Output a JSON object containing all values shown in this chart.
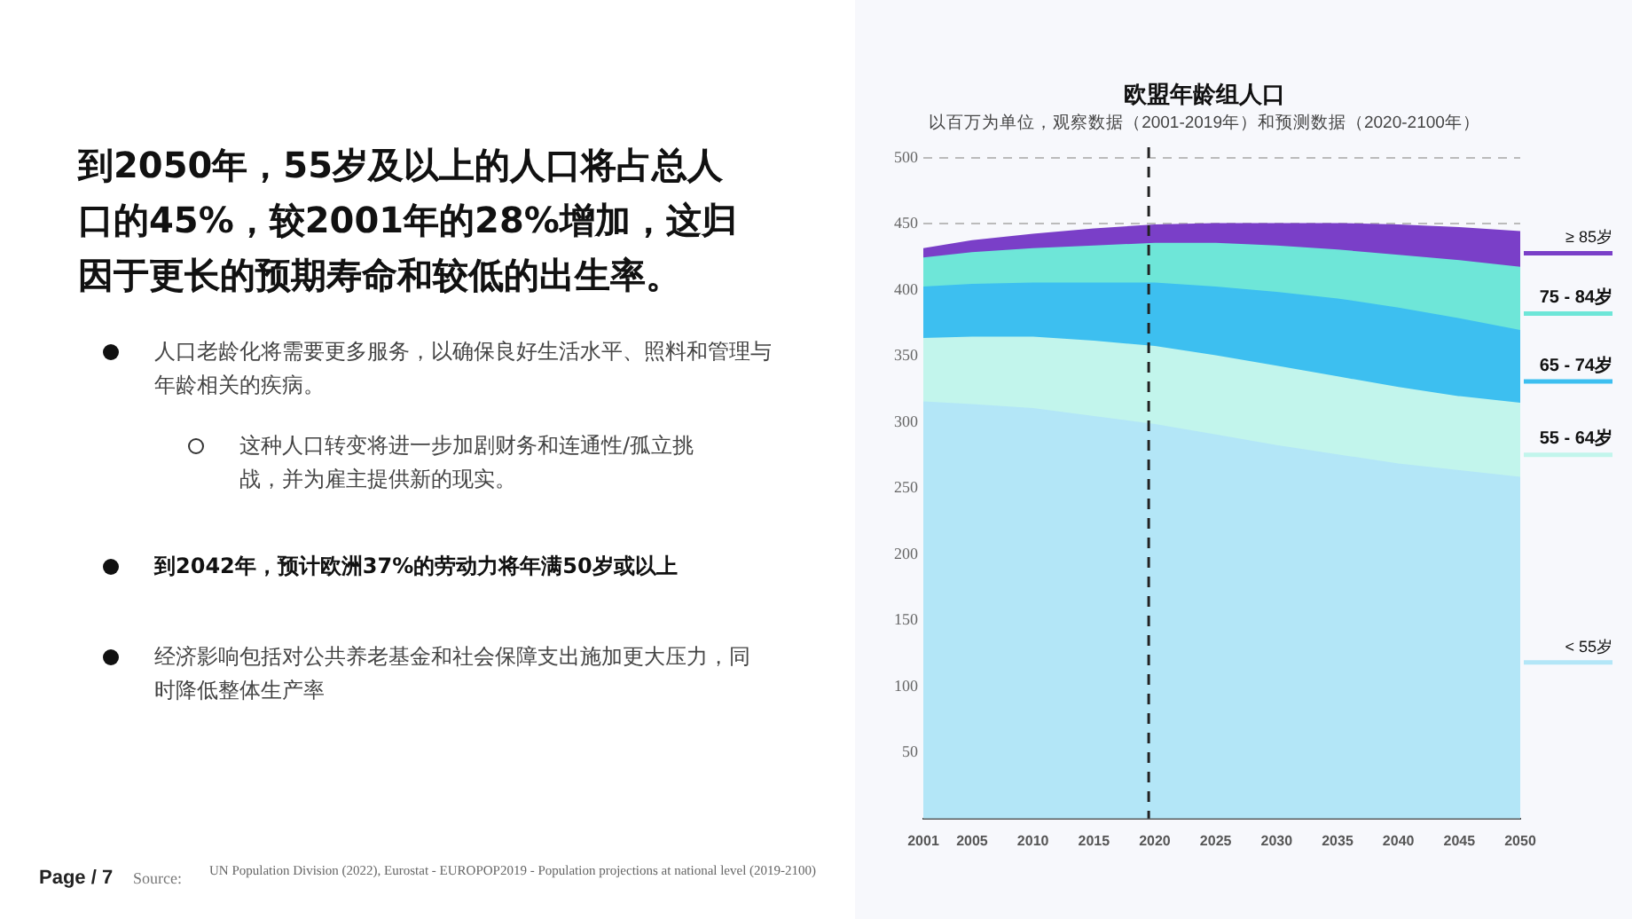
{
  "chart_data": {
    "type": "area",
    "title": "欧盟年龄组人口",
    "subtitle": "以百万为单位，观察数据（2001-2019年）和预测数据（2020-2100年）",
    "stacked": true,
    "x": [
      2001,
      2005,
      2010,
      2015,
      2020,
      2025,
      2030,
      2035,
      2040,
      2045,
      2050
    ],
    "series": [
      {
        "name": "< 55岁",
        "color": "#b3e6f7",
        "values": [
          315,
          313,
          310,
          304,
          298,
          290,
          282,
          275,
          268,
          263,
          258
        ]
      },
      {
        "name": "55 - 64岁",
        "color": "#c2f5ec",
        "values": [
          48,
          51,
          54,
          57,
          59,
          60,
          60,
          59,
          58,
          56,
          56
        ]
      },
      {
        "name": "65 - 74岁",
        "color": "#3dbff0",
        "values": [
          39,
          40,
          41,
          44,
          48,
          52,
          56,
          59,
          60,
          59,
          55
        ]
      },
      {
        "name": "75 - 84岁",
        "color": "#6ee6d8",
        "values": [
          22,
          24,
          26,
          28,
          30,
          33,
          35,
          37,
          40,
          44,
          48
        ]
      },
      {
        "name": "≥ 85岁",
        "color": "#7a3fc8",
        "values": [
          7,
          9,
          11,
          13,
          14,
          15,
          17,
          20,
          23,
          25,
          27
        ]
      }
    ],
    "xlim": [
      2001,
      2050
    ],
    "xticks": [
      2001,
      2005,
      2010,
      2015,
      2020,
      2025,
      2030,
      2035,
      2040,
      2045,
      2050
    ],
    "ylim": [
      0,
      500
    ],
    "yticks": [
      50,
      100,
      150,
      200,
      250,
      300,
      350,
      400,
      450,
      500
    ],
    "grid": "y",
    "legend": "right",
    "marker": "none",
    "ref_lines": [
      {
        "axis": "x",
        "value": 2019.5,
        "color": "#222222",
        "line_style": "dashed"
      }
    ],
    "annotations": [
      "到2050年，55岁及以上的人口将占总人口的45%，较2001年的28%增加，这归因于更长的预期寿命和较低的出生率。",
      "人口老龄化将需要更多服务，以确保良好生活水平、照料和管理与年龄相关的疾病。",
      "这种人口转变将进一步加剧财务和连通性/孤立挑战，并为雇主提供新的现实。",
      "到2042年，预计欧洲37%的劳动力将年满50岁或以上",
      "经济影响包括对公共养老基金和社会保障支出施加更大压力，同时降低整体生产率",
      "Page / 7",
      "Source:",
      "UN Population Division (2022), Eurostat - EUROPOP2019 - Population projections at national level (2019-2100)"
    ]
  }
}
